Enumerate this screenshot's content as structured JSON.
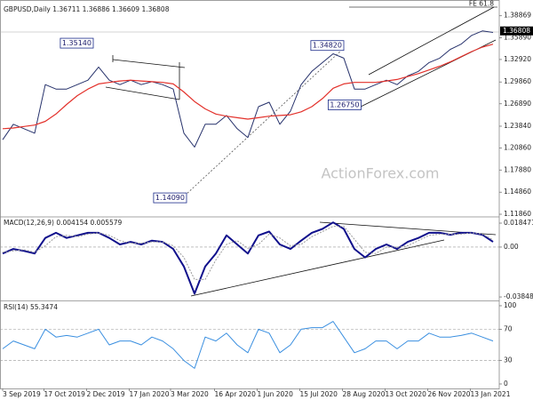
{
  "chart_data": [
    {
      "type": "line",
      "title": "GBPUSD,Daily 1.36711 1.36886 1.36609 1.36808",
      "watermark": "ActionForex.com",
      "fibonacci_label": "FE 61.8",
      "x": [
        0,
        8,
        16,
        24,
        32,
        40,
        48,
        56,
        64,
        72,
        80,
        88,
        96,
        104,
        112,
        120,
        128,
        136,
        144,
        152,
        160,
        168,
        176,
        184,
        192,
        200,
        208,
        216,
        224,
        232,
        240,
        248,
        256,
        264,
        272,
        280,
        288,
        296,
        304,
        312,
        320,
        328,
        336,
        344,
        352,
        360,
        368
      ],
      "series": [
        {
          "color": "#26316b",
          "width": 1,
          "values": [
            1.22,
            1.241,
            1.235,
            1.229,
            1.295,
            1.289,
            1.289,
            1.295,
            1.301,
            1.319,
            1.301,
            1.295,
            1.301,
            1.295,
            1.299,
            1.295,
            1.289,
            1.229,
            1.21,
            1.241,
            1.241,
            1.253,
            1.235,
            1.223,
            1.265,
            1.271,
            1.241,
            1.259,
            1.295,
            1.313,
            1.325,
            1.337,
            1.331,
            1.289,
            1.289,
            1.295,
            1.301,
            1.295,
            1.307,
            1.313,
            1.325,
            1.331,
            1.343,
            1.35,
            1.362,
            1.368,
            1.366
          ]
        },
        {
          "color": "#e3312b",
          "width": 1.2,
          "values": [
            1.235,
            1.236,
            1.238,
            1.24,
            1.245,
            1.255,
            1.268,
            1.28,
            1.289,
            1.296,
            1.298,
            1.3,
            1.301,
            1.3,
            1.299,
            1.298,
            1.296,
            1.285,
            1.272,
            1.262,
            1.255,
            1.252,
            1.25,
            1.248,
            1.25,
            1.252,
            1.253,
            1.254,
            1.258,
            1.265,
            1.276,
            1.29,
            1.296,
            1.298,
            1.298,
            1.298,
            1.3,
            1.302,
            1.306,
            1.31,
            1.315,
            1.32,
            1.326,
            1.333,
            1.34,
            1.346,
            1.35
          ]
        }
      ],
      "xlim": [
        0,
        372
      ],
      "ylim": [
        1.1162,
        1.4041
      ],
      "yticks": [
        1.38869,
        {
          "value": 1.3589,
          "label": "1.35890"
        },
        {
          "value": 1.3292,
          "label": "1.32920"
        },
        {
          "value": 1.2986,
          "label": "1.29860"
        },
        {
          "value": 1.2689,
          "label": "1.26890"
        },
        {
          "value": 1.2384,
          "label": "1.23840"
        },
        {
          "value": 1.2086,
          "label": "1.20860"
        },
        {
          "value": 1.1788,
          "label": "1.17880"
        },
        {
          "value": 1.1486,
          "label": "1.14860"
        },
        {
          "value": 1.1186,
          "label": "1.11860"
        }
      ],
      "last_price": 1.36808,
      "annotations": [
        {
          "label": "1.35140",
          "x": 68,
          "y": 1.3514
        },
        {
          "label": "1.34820",
          "x": 256,
          "y": 1.3482
        },
        {
          "label": "1.26750",
          "x": 269,
          "y": 1.2675
        },
        {
          "label": "1.14090",
          "x": 138,
          "y": 1.1409
        }
      ]
    },
    {
      "type": "line",
      "title": "MACD(12,26,9) 0.004154 0.005579",
      "x": [
        0,
        8,
        16,
        24,
        32,
        40,
        48,
        56,
        64,
        72,
        80,
        88,
        96,
        104,
        112,
        120,
        128,
        136,
        144,
        152,
        160,
        168,
        176,
        184,
        192,
        200,
        208,
        216,
        224,
        232,
        240,
        248,
        256,
        264,
        272,
        280,
        288,
        296,
        304,
        312,
        320,
        328,
        336,
        344,
        352,
        360,
        368
      ],
      "series": [
        {
          "color": "#10108c",
          "width": 2,
          "values": [
            -0.005,
            -0.0015,
            -0.003,
            -0.005,
            0.007,
            0.011,
            0.007,
            0.009,
            0.011,
            0.011,
            0.007,
            0.002,
            0.004,
            0.002,
            0.005,
            0.004,
            -0.0015,
            -0.015,
            -0.036,
            -0.015,
            -0.005,
            0.009,
            0.002,
            -0.005,
            0.009,
            0.012,
            0.002,
            -0.0015,
            0.005,
            0.011,
            0.014,
            0.019,
            0.014,
            -0.0015,
            -0.008,
            -0.0015,
            0.002,
            -0.0015,
            0.004,
            0.007,
            0.011,
            0.011,
            0.0095,
            0.011,
            0.011,
            0.0095,
            0.004
          ]
        },
        {
          "color": "#9a9a9a",
          "width": 1,
          "dashed": true,
          "values": [
            -0.004,
            -0.003,
            -0.002,
            -0.004,
            0.001,
            0.008,
            0.009,
            0.008,
            0.01,
            0.011,
            0.009,
            0.005,
            0.003,
            0.003,
            0.004,
            0.004,
            0.001,
            -0.008,
            -0.025,
            -0.025,
            -0.01,
            0.002,
            0.005,
            -0.001,
            0.002,
            0.01,
            0.007,
            0.001,
            0.002,
            0.008,
            0.012,
            0.016,
            0.016,
            0.006,
            -0.004,
            -0.005,
            0,
            0,
            0.001,
            0.005,
            0.009,
            0.01,
            0.01,
            0.01,
            0.011,
            0.01,
            0.0056
          ]
        }
      ],
      "xlim": [
        0,
        372
      ],
      "ylim": [
        -0.0405,
        0.0226
      ],
      "yticks": [
        0.018471,
        {
          "value": 0,
          "label": "0.00"
        },
        -0.038486
      ],
      "levels": [
        0
      ]
    },
    {
      "type": "line",
      "title": "RSI(14) 55.3474",
      "x": [
        0,
        8,
        16,
        24,
        32,
        40,
        48,
        56,
        64,
        72,
        80,
        88,
        96,
        104,
        112,
        120,
        128,
        136,
        144,
        152,
        160,
        168,
        176,
        184,
        192,
        200,
        208,
        216,
        224,
        232,
        240,
        248,
        256,
        264,
        272,
        280,
        288,
        296,
        304,
        312,
        320,
        328,
        336,
        344,
        352,
        360,
        368
      ],
      "series": [
        {
          "color": "#3a8fe0",
          "width": 1,
          "values": [
            45,
            55,
            50,
            45,
            70,
            60,
            62,
            60,
            65,
            70,
            50,
            55,
            55,
            50,
            60,
            55,
            45,
            30,
            20,
            60,
            55,
            65,
            50,
            40,
            70,
            65,
            40,
            50,
            70,
            72,
            72,
            80,
            60,
            40,
            45,
            55,
            55,
            45,
            55,
            55,
            65,
            60,
            60,
            62,
            65,
            60,
            55
          ]
        }
      ],
      "xlim": [
        0,
        372
      ],
      "ylim": [
        -5.7,
        104.5
      ],
      "yticks": [
        100,
        70,
        30,
        0
      ],
      "levels": [
        70,
        30
      ],
      "xticks": [
        {
          "value": 0,
          "label": "3 Sep 2019"
        },
        {
          "value": 31,
          "label": "17 Oct 2019"
        },
        {
          "value": 63,
          "label": "2 Dec 2019"
        },
        {
          "value": 95,
          "label": "17 Jan 2020"
        },
        {
          "value": 126,
          "label": "3 Mar 2020"
        },
        {
          "value": 159,
          "label": "16 Apr 2020"
        },
        {
          "value": 191,
          "label": "1 Jun 2020"
        },
        {
          "value": 223,
          "label": "15 Jul 2020"
        },
        {
          "value": 255,
          "label": "28 Aug 2020"
        },
        {
          "value": 287,
          "label": "13 Oct 2020"
        },
        {
          "value": 319,
          "label": "26 Nov 2020"
        },
        {
          "value": 351,
          "label": "13 Jan 2021"
        }
      ]
    }
  ]
}
